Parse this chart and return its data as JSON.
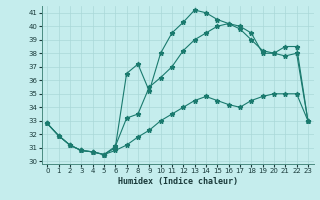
{
  "xlabel": "Humidex (Indice chaleur)",
  "xlim": [
    -0.5,
    23.5
  ],
  "ylim": [
    29.8,
    41.5
  ],
  "yticks": [
    30,
    31,
    32,
    33,
    34,
    35,
    36,
    37,
    38,
    39,
    40,
    41
  ],
  "xticks": [
    0,
    1,
    2,
    3,
    4,
    5,
    6,
    7,
    8,
    9,
    10,
    11,
    12,
    13,
    14,
    15,
    16,
    17,
    18,
    19,
    20,
    21,
    22,
    23
  ],
  "bg_color": "#c5eded",
  "grid_color": "#aad8d8",
  "line_color": "#1a7a6e",
  "line1_y": [
    32.8,
    31.9,
    31.2,
    30.8,
    30.7,
    30.5,
    31.0,
    36.5,
    37.2,
    35.2,
    38.0,
    39.5,
    40.3,
    41.2,
    41.0,
    40.5,
    40.2,
    39.8,
    39.0,
    38.2,
    38.0,
    38.5,
    38.5,
    33.0
  ],
  "line2_y": [
    32.8,
    31.9,
    31.2,
    30.8,
    30.7,
    30.5,
    31.1,
    33.2,
    33.5,
    35.5,
    36.2,
    37.0,
    38.2,
    39.0,
    39.5,
    40.0,
    40.2,
    40.0,
    39.5,
    38.0,
    38.0,
    37.8,
    38.0,
    33.0
  ],
  "line3_y": [
    32.8,
    31.9,
    31.2,
    30.8,
    30.7,
    30.5,
    30.8,
    31.2,
    31.8,
    32.3,
    33.0,
    33.5,
    34.0,
    34.5,
    34.8,
    34.5,
    34.2,
    34.0,
    34.5,
    34.8,
    35.0,
    35.0,
    35.0,
    33.0
  ]
}
